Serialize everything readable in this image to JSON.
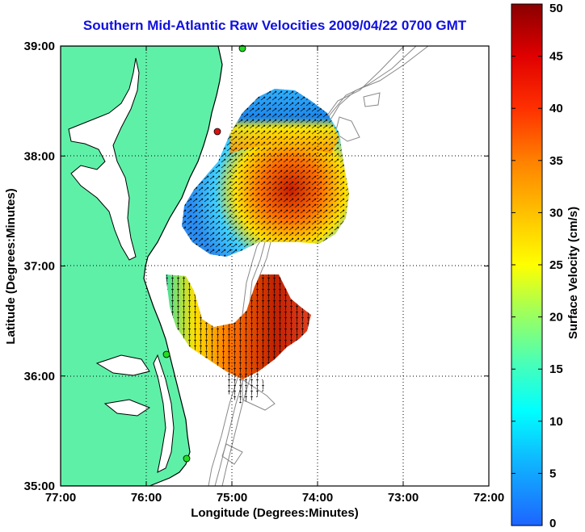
{
  "title": "Southern Mid-Atlantic Raw Velocities 2009/04/22 0700 GMT",
  "xlabel": "Longitude (Degrees:Minutes)",
  "ylabel": "Latitude (Degrees:Minutes)",
  "x_ticks": [
    "77:00",
    "76:00",
    "75:00",
    "74:00",
    "73:00",
    "72:00"
  ],
  "y_ticks": [
    "39:00",
    "38:00",
    "37:00",
    "36:00",
    "35:00"
  ],
  "colorbar": {
    "label": "Surface Velocity (cm/s)",
    "ticks": [
      "50",
      "45",
      "40",
      "35",
      "30",
      "25",
      "20",
      "15",
      "10",
      "5",
      "0"
    ],
    "min": 0,
    "max": 50
  },
  "colors": {
    "land": "#5ff0a8",
    "coast": "#000000",
    "title": "#1010e0",
    "station_green": "#1ee01e",
    "station_red": "#e01010"
  },
  "chart_data": {
    "type": "heatmap",
    "title": "Southern Mid-Atlantic Raw Velocities 2009/04/22 0700 GMT",
    "xlabel": "Longitude (Degrees:Minutes)",
    "ylabel": "Latitude (Degrees:Minutes)",
    "xlim": [
      -77,
      -72
    ],
    "ylim": [
      35,
      39
    ],
    "units": "cm/s",
    "value_range": [
      0,
      50
    ],
    "stations": [
      {
        "lon": -74.9,
        "lat": 38.98,
        "color": "green"
      },
      {
        "lon": -75.1,
        "lat": 38.22,
        "color": "red"
      },
      {
        "lon": -75.7,
        "lat": 36.2,
        "color": "green"
      },
      {
        "lon": -75.5,
        "lat": 35.26,
        "color": "green"
      }
    ]
  }
}
